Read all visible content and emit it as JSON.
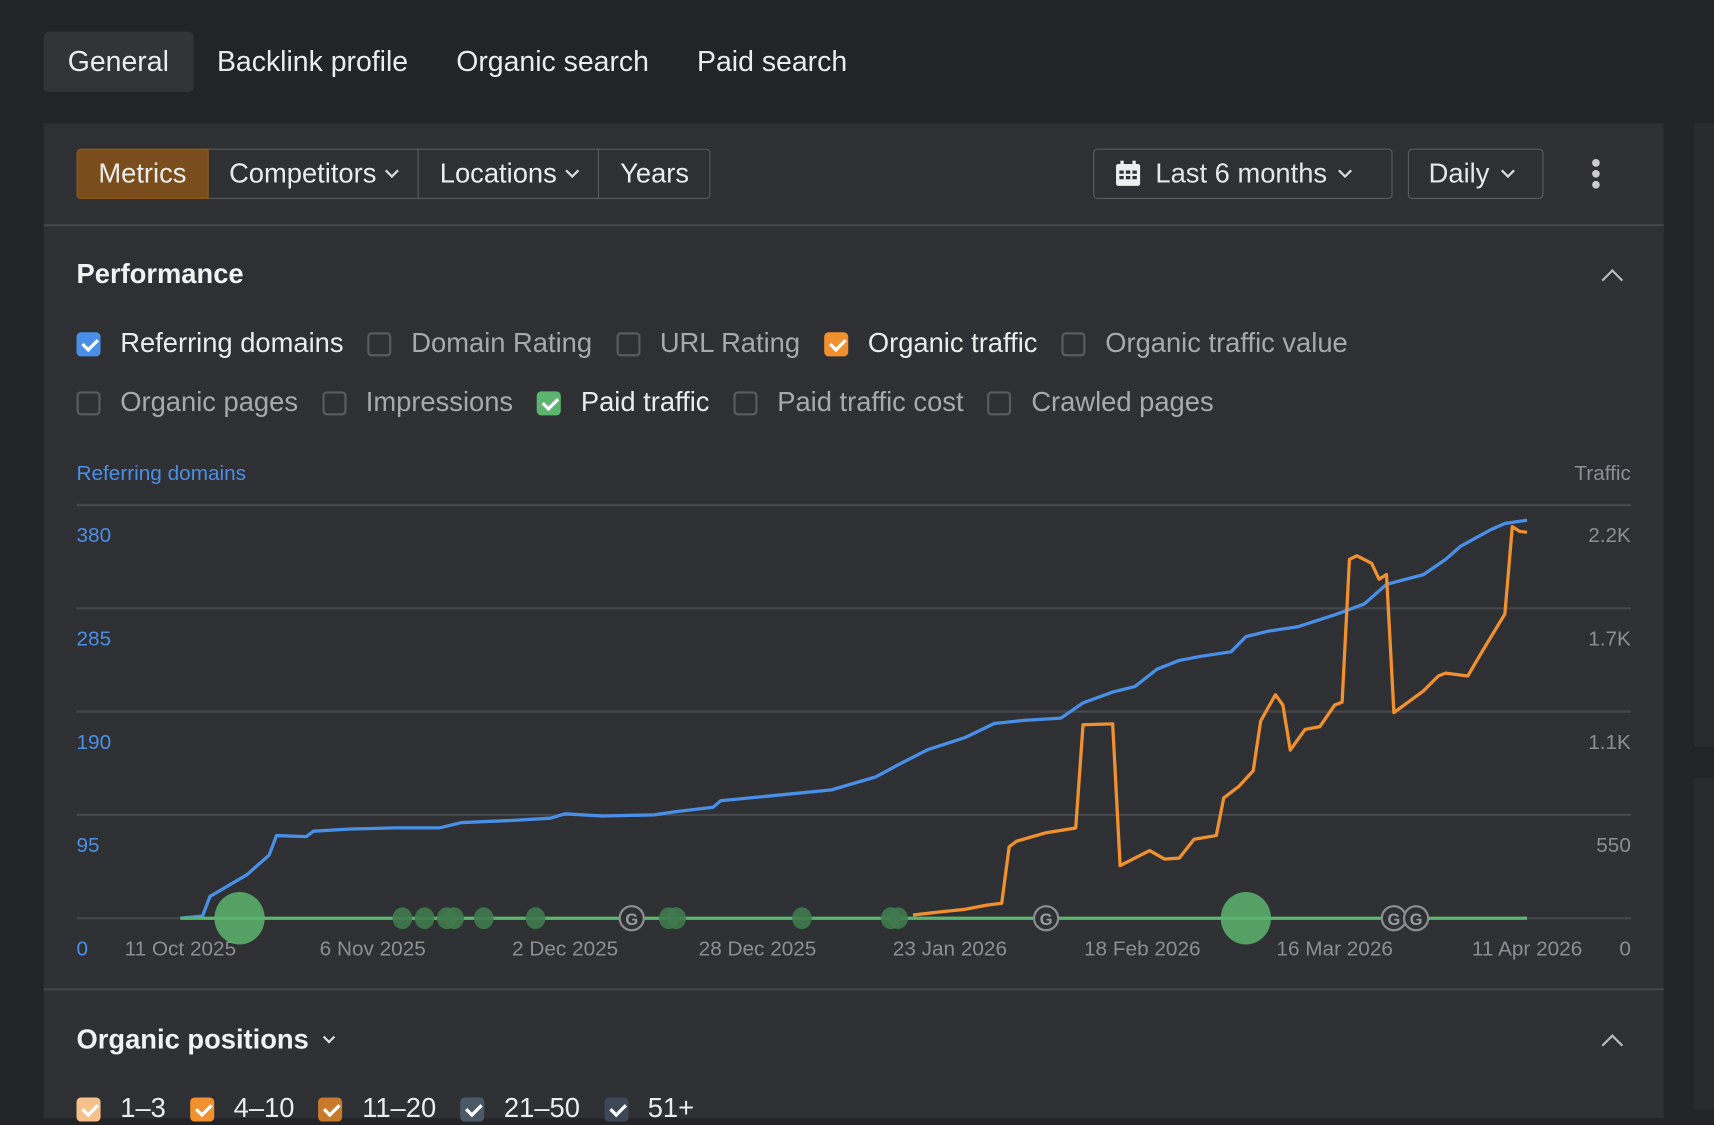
{
  "tabs": [
    {
      "label": "General",
      "active": true
    },
    {
      "label": "Backlink profile"
    },
    {
      "label": "Organic search"
    },
    {
      "label": "Paid search"
    }
  ],
  "toolbar": {
    "segments": [
      {
        "label": "Metrics",
        "active": true
      },
      {
        "label": "Competitors",
        "dropdown": true
      },
      {
        "label": "Locations",
        "dropdown": true
      },
      {
        "label": "Years"
      }
    ],
    "date_range": "Last 6 months",
    "date_icon": "calendar-icon",
    "interval": "Daily",
    "more_icon": "more-vertical-icon"
  },
  "performance": {
    "title": "Performance",
    "metrics_row1": [
      {
        "label": "Referring domains",
        "checked": true,
        "color": "#4a8fe7"
      },
      {
        "label": "Domain Rating",
        "checked": false
      },
      {
        "label": "URL Rating",
        "checked": false
      },
      {
        "label": "Organic traffic",
        "checked": true,
        "color": "#f0902f"
      },
      {
        "label": "Organic traffic value",
        "checked": false
      }
    ],
    "metrics_row2": [
      {
        "label": "Organic pages",
        "checked": false
      },
      {
        "label": "Impressions",
        "checked": false
      },
      {
        "label": "Paid traffic",
        "checked": true,
        "color": "#5cb56f"
      },
      {
        "label": "Paid traffic cost",
        "checked": false
      },
      {
        "label": "Crawled pages",
        "checked": false
      }
    ]
  },
  "chart_data": {
    "type": "line",
    "left_axis_label": "Referring domains",
    "right_axis_label": "Traffic",
    "left_ticks": [
      "0",
      "95",
      "190",
      "285",
      "380"
    ],
    "right_ticks": [
      "0",
      "550",
      "1.1K",
      "1.7K",
      "2.2K"
    ],
    "ylim_left": [
      0,
      380
    ],
    "ylim_right": [
      0,
      2200
    ],
    "x_ticks": [
      "11 Oct 2025",
      "6 Nov 2025",
      "2 Dec 2025",
      "28 Dec 2025",
      "23 Jan 2026",
      "18 Feb 2026",
      "16 Mar 2026",
      "11 Apr 2026"
    ],
    "xlim": [
      "2025-10-11",
      "2026-04-11"
    ],
    "grid": true,
    "series": [
      {
        "name": "Referring domains",
        "axis": "left",
        "color": "#4a8fe7",
        "points": [
          [
            "2025-10-11",
            0
          ],
          [
            "2025-10-14",
            2
          ],
          [
            "2025-10-15",
            20
          ],
          [
            "2025-10-20",
            40
          ],
          [
            "2025-10-23",
            58
          ],
          [
            "2025-10-24",
            76
          ],
          [
            "2025-10-28",
            75
          ],
          [
            "2025-10-29",
            80
          ],
          [
            "2025-11-03",
            82
          ],
          [
            "2025-11-09",
            83
          ],
          [
            "2025-11-15",
            83
          ],
          [
            "2025-11-18",
            88
          ],
          [
            "2025-11-25",
            90
          ],
          [
            "2025-11-30",
            92
          ],
          [
            "2025-12-02",
            96
          ],
          [
            "2025-12-07",
            94
          ],
          [
            "2025-12-14",
            95
          ],
          [
            "2025-12-17",
            98
          ],
          [
            "2025-12-22",
            102
          ],
          [
            "2025-12-23",
            108
          ],
          [
            "2025-12-29",
            112
          ],
          [
            "2026-01-07",
            118
          ],
          [
            "2026-01-13",
            130
          ],
          [
            "2026-01-16",
            141
          ],
          [
            "2026-01-20",
            155
          ],
          [
            "2026-01-25",
            166
          ],
          [
            "2026-01-29",
            179
          ],
          [
            "2026-02-02",
            182
          ],
          [
            "2026-02-07",
            184
          ],
          [
            "2026-02-10",
            198
          ],
          [
            "2026-02-14",
            208
          ],
          [
            "2026-02-17",
            213
          ],
          [
            "2026-02-20",
            229
          ],
          [
            "2026-02-23",
            237
          ],
          [
            "2026-02-26",
            241
          ],
          [
            "2026-03-02",
            245
          ],
          [
            "2026-03-04",
            259
          ],
          [
            "2026-03-07",
            264
          ],
          [
            "2026-03-11",
            268
          ],
          [
            "2026-03-16",
            279
          ],
          [
            "2026-03-20",
            289
          ],
          [
            "2026-03-23",
            307
          ],
          [
            "2026-03-28",
            316
          ],
          [
            "2026-03-31",
            330
          ],
          [
            "2026-04-02",
            342
          ],
          [
            "2026-04-06",
            357
          ],
          [
            "2026-04-08",
            363
          ],
          [
            "2026-04-11",
            366
          ]
        ]
      },
      {
        "name": "Organic traffic",
        "axis": "right",
        "color": "#f0902f",
        "points": [
          [
            "2026-01-18",
            17
          ],
          [
            "2026-01-22",
            35
          ],
          [
            "2026-01-25",
            47
          ],
          [
            "2026-01-28",
            70
          ],
          [
            "2026-01-30",
            80
          ],
          [
            "2026-01-31",
            380
          ],
          [
            "2026-02-01",
            410
          ],
          [
            "2026-02-05",
            455
          ],
          [
            "2026-02-09",
            480
          ],
          [
            "2026-02-10",
            1030
          ],
          [
            "2026-02-14",
            1035
          ],
          [
            "2026-02-15",
            280
          ],
          [
            "2026-02-19",
            360
          ],
          [
            "2026-02-21",
            315
          ],
          [
            "2026-02-23",
            320
          ],
          [
            "2026-02-25",
            420
          ],
          [
            "2026-02-28",
            440
          ],
          [
            "2026-03-01",
            640
          ],
          [
            "2026-03-03",
            700
          ],
          [
            "2026-03-05",
            785
          ],
          [
            "2026-03-06",
            1050
          ],
          [
            "2026-03-08",
            1190
          ],
          [
            "2026-03-09",
            1135
          ],
          [
            "2026-03-10",
            895
          ],
          [
            "2026-03-12",
            1005
          ],
          [
            "2026-03-14",
            1020
          ],
          [
            "2026-03-16",
            1135
          ],
          [
            "2026-03-17",
            1150
          ],
          [
            "2026-03-18",
            1910
          ],
          [
            "2026-03-19",
            1930
          ],
          [
            "2026-03-21",
            1890
          ],
          [
            "2026-03-22",
            1805
          ],
          [
            "2026-03-23",
            1830
          ],
          [
            "2026-03-24",
            1095
          ],
          [
            "2026-03-28",
            1210
          ],
          [
            "2026-03-30",
            1290
          ],
          [
            "2026-03-31",
            1305
          ],
          [
            "2026-04-03",
            1290
          ],
          [
            "2026-04-05",
            1425
          ],
          [
            "2026-04-08",
            1620
          ],
          [
            "2026-04-09",
            2085
          ],
          [
            "2026-04-10",
            2060
          ],
          [
            "2026-04-11",
            2055
          ]
        ]
      },
      {
        "name": "Paid traffic",
        "axis": "right",
        "color": "#5cb56f",
        "points": [
          [
            "2025-10-11",
            0
          ],
          [
            "2026-04-11",
            0
          ]
        ]
      }
    ],
    "annotations": {
      "large": [
        "2025-10-19",
        "2026-03-04"
      ],
      "small": [
        "2025-11-10",
        "2025-11-13",
        "2025-11-16",
        "2025-11-17",
        "2025-11-21",
        "2025-11-28",
        "2025-12-16",
        "2025-12-17",
        "2026-01-03",
        "2026-01-15",
        "2026-01-16"
      ],
      "google_updates": [
        "2025-12-11",
        "2026-02-05",
        "2026-03-24",
        "2026-03-27"
      ],
      "google_label": "G"
    }
  },
  "organic_positions": {
    "title": "Organic positions",
    "items": [
      {
        "label": "1–3",
        "color": "#f5c08a"
      },
      {
        "label": "4–10",
        "color": "#f0902f"
      },
      {
        "label": "11–20",
        "color": "#c77a2c"
      },
      {
        "label": "21–50",
        "color": "#4b5868"
      },
      {
        "label": "51+",
        "color": "#3d4756"
      }
    ]
  }
}
